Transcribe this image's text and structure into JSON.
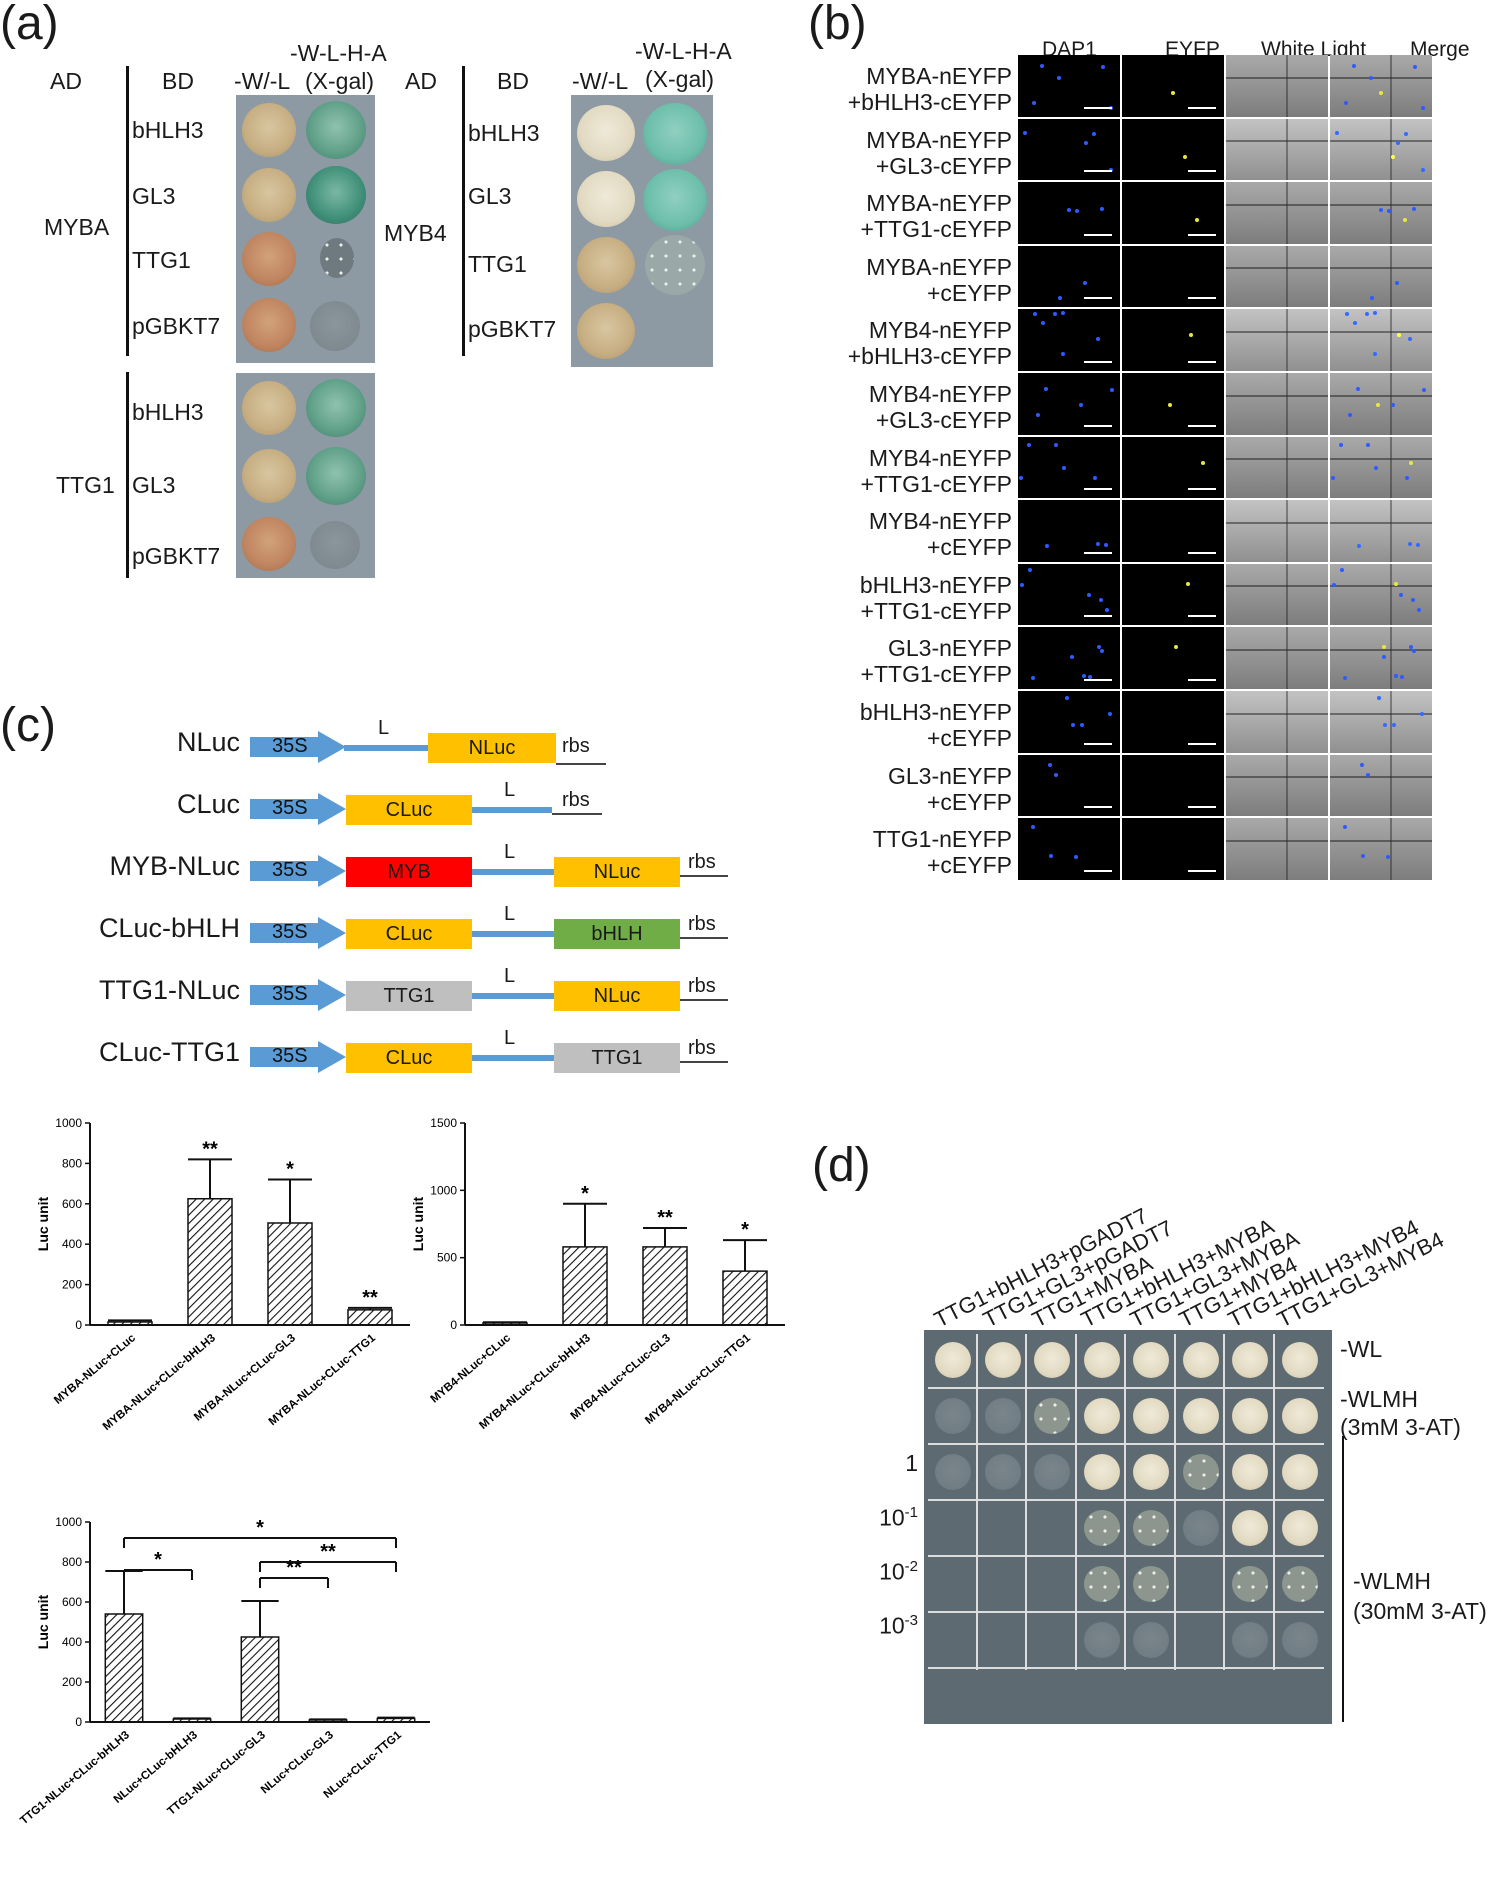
{
  "panel_a": {
    "label": "(a)",
    "ad_header": "AD",
    "bd_header": "BD",
    "col_wl": "-W/-L",
    "col_sel_line1": "-W-L-H-A",
    "col_sel_line2": "(X-gal)",
    "left_ad": "MYBA",
    "right_ad": "MYB4",
    "bottom_ad": "TTG1",
    "left_bd": [
      "bHLH3",
      "GL3",
      "TTG1",
      "pGBKT7"
    ],
    "right_bd": [
      "bHLH3",
      "GL3",
      "TTG1",
      "pGBKT7"
    ],
    "bottom_bd": [
      "bHLH3",
      "GL3",
      "pGBKT7"
    ]
  },
  "panel_b": {
    "label": "(b)",
    "columns": [
      "DAP1",
      "EYFP",
      "White Light",
      "Merge"
    ],
    "rows": [
      [
        "MYBA-nEYFP",
        "+bHLH3-cEYFP"
      ],
      [
        "MYBA-nEYFP",
        "+GL3-cEYFP"
      ],
      [
        "MYBA-nEYFP",
        "+TTG1-cEYFP"
      ],
      [
        "MYBA-nEYFP",
        "+cEYFP"
      ],
      [
        "MYB4-nEYFP",
        "+bHLH3-cEYFP"
      ],
      [
        "MYB4-nEYFP",
        "+GL3-cEYFP"
      ],
      [
        "MYB4-nEYFP",
        "+TTG1-cEYFP"
      ],
      [
        "MYB4-nEYFP",
        "+cEYFP"
      ],
      [
        "bHLH3-nEYFP",
        "+TTG1-cEYFP"
      ],
      [
        "GL3-nEYFP",
        "+TTG1-cEYFP"
      ],
      [
        "bHLH3-nEYFP",
        "+cEYFP"
      ],
      [
        "GL3-nEYFP",
        "+cEYFP"
      ],
      [
        "TTG1-nEYFP",
        "+cEYFP"
      ]
    ]
  },
  "panel_c": {
    "label": "(c)",
    "constructs": [
      {
        "name": "NLuc",
        "promoter": "35S",
        "linker": "L",
        "end": "rbs",
        "parts": [
          {
            "text": "NLuc",
            "color": "#ffc000"
          }
        ]
      },
      {
        "name": "CLuc",
        "promoter": "35S",
        "linker": "L",
        "end": "rbs",
        "parts": [
          {
            "text": "CLuc",
            "color": "#ffc000"
          }
        ]
      },
      {
        "name": "MYB-NLuc",
        "promoter": "35S",
        "linker": "L",
        "end": "rbs",
        "parts": [
          {
            "text": "MYB",
            "color": "#ff0000"
          },
          {
            "text": "NLuc",
            "color": "#ffc000"
          }
        ]
      },
      {
        "name": "CLuc-bHLH",
        "promoter": "35S",
        "linker": "L",
        "end": "rbs",
        "parts": [
          {
            "text": "CLuc",
            "color": "#ffc000"
          },
          {
            "text": "bHLH",
            "color": "#70ad47"
          }
        ]
      },
      {
        "name": "TTG1-NLuc",
        "promoter": "35S",
        "linker": "L",
        "end": "rbs",
        "parts": [
          {
            "text": "TTG1",
            "color": "#bfbfbf"
          },
          {
            "text": "NLuc",
            "color": "#ffc000"
          }
        ]
      },
      {
        "name": "CLuc-TTG1",
        "promoter": "35S",
        "linker": "L",
        "end": "rbs",
        "parts": [
          {
            "text": "CLuc",
            "color": "#ffc000"
          },
          {
            "text": "TTG1",
            "color": "#bfbfbf"
          }
        ]
      }
    ]
  },
  "chart_data": [
    {
      "type": "bar",
      "ylabel": "Luc unit",
      "ylim": [
        0,
        1000
      ],
      "yticks": [
        0,
        200,
        400,
        600,
        800,
        1000
      ],
      "categories": [
        "MYBA-NLuc+CLuc",
        "MYBA-NLuc+CLuc-bHLH3",
        "MYBA-NLuc+CLuc-GL3",
        "MYBA-NLuc+CLuc-TTG1"
      ],
      "values": [
        15,
        625,
        505,
        75
      ],
      "errors": [
        8,
        195,
        215,
        10
      ],
      "significance": [
        "",
        "**",
        "*",
        "**"
      ]
    },
    {
      "type": "bar",
      "ylabel": "Luc unit",
      "ylim": [
        0,
        1500
      ],
      "yticks": [
        0,
        500,
        1000,
        1500
      ],
      "categories": [
        "MYB4-NLuc+CLuc",
        "MYB4-NLuc+CLuc-bHLH3",
        "MYB4-NLuc+CLuc-GL3",
        "MYB4-NLuc+CLuc-TTG1"
      ],
      "values": [
        15,
        580,
        580,
        400
      ],
      "errors": [
        5,
        320,
        140,
        230
      ],
      "significance": [
        "",
        "*",
        "**",
        "*"
      ]
    },
    {
      "type": "bar",
      "ylabel": "Luc unit",
      "ylim": [
        0,
        1000
      ],
      "yticks": [
        0,
        200,
        400,
        600,
        800,
        1000
      ],
      "categories": [
        "TTG1-NLuc+CLuc-bHLH3",
        "NLuc+CLuc-bHLH3",
        "TTG1-NLuc+CLuc-GL3",
        "NLuc+CLuc-GL3",
        "NLuc+CLuc-TTG1"
      ],
      "values": [
        540,
        15,
        425,
        10,
        18
      ],
      "errors": [
        215,
        3,
        180,
        3,
        4
      ],
      "comparisons": [
        {
          "from": 0,
          "to": 1,
          "label": "*"
        },
        {
          "from": 0,
          "to": 4,
          "label": "*"
        },
        {
          "from": 2,
          "to": 3,
          "label": "**"
        },
        {
          "from": 2,
          "to": 4,
          "label": "**"
        }
      ]
    }
  ],
  "panel_d": {
    "label": "(d)",
    "columns": [
      "TTG1+bHLH3+pGADT7",
      "TTG1+GL3+pGADT7",
      "TTG1+MYBA",
      "TTG1+bHLH3+MYBA",
      "TTG1+GL3+MYBA",
      "TTG1+MYB4",
      "TTG1+bHLH3+MYB4",
      "TTG1+GL3+MYB4"
    ],
    "row_wl": "-WL",
    "row_wlmh_line1": "-WLMH",
    "row_wlmh_line2": "(3mM 3-AT)",
    "dilutions": [
      "1",
      "10",
      "10",
      "10"
    ],
    "dilution_exp": [
      "",
      "-1",
      "-2",
      "-3"
    ],
    "high_line1": "-WLMH",
    "high_line2": "(30mM 3-AT)"
  }
}
